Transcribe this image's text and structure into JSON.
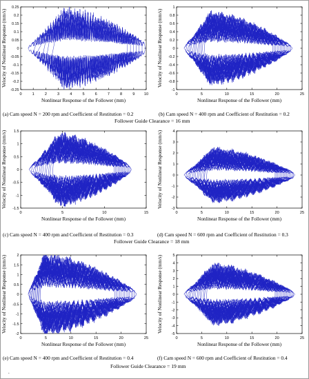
{
  "panels": [
    {
      "id": "a",
      "caption": "(a) Cam speed N = 200 rpm and Coefficient of Restitution = 0.2",
      "chart_data": {
        "type": "line",
        "title": "",
        "xlabel": "Nonlinear Response of the Follower (mm)",
        "ylabel": "Velocity of Nonlinear Response (mm/s)",
        "xlim": [
          0,
          10
        ],
        "ylim": [
          -0.25,
          0.25
        ],
        "xticks": [
          "0",
          "1",
          "2",
          "3",
          "4",
          "5",
          "6",
          "7",
          "8",
          "9",
          "10"
        ],
        "yticks": [
          "-0.25",
          "-0.2",
          "-0.15",
          "-0.1",
          "-0.05",
          "0",
          "0.05",
          "0.1",
          "0.15",
          "0.2",
          "0.25"
        ],
        "grid": false,
        "color": "#1f24c4",
        "envelope": {
          "x0": 0.6,
          "x1": 9.9,
          "x_peak": 3.4,
          "amp_peak": 0.225,
          "amp_end": 0.03,
          "loops": 7,
          "oscillations": 44
        }
      }
    },
    {
      "id": "b",
      "caption": "(b) Cam speed N = 400 rpm and Coefficient of Restitution = 0.2",
      "chart_data": {
        "type": "line",
        "title": "",
        "xlabel": "Nonlinear Response of the Follower (mm)",
        "ylabel": "Velocity of Nonlinear Response (mm/s)",
        "xlim": [
          0,
          25
        ],
        "ylim": [
          -1,
          1
        ],
        "xticks": [
          "0",
          "5",
          "10",
          "15",
          "20",
          "25"
        ],
        "yticks": [
          "-1",
          "-0.8",
          "-0.6",
          "-0.4",
          "-0.2",
          "0",
          "0.2",
          "0.4",
          "0.6",
          "0.8",
          "1"
        ],
        "grid": false,
        "color": "#1f24c4",
        "envelope": {
          "x0": 1.5,
          "x1": 23,
          "x_peak": 6.5,
          "amp_peak": 0.82,
          "amp_end": 0.05,
          "loops": 14,
          "oscillations": 10
        }
      }
    },
    {
      "id": "c",
      "caption": "(c) Cam speed N = 400 rpm and Coefficient of Restitution = 0.3",
      "chart_data": {
        "type": "line",
        "title": "",
        "xlabel": "Nonlinear Response of the Follower (mm)",
        "ylabel": "Velocity of Nonlinear Response (mm/s)",
        "xlim": [
          0,
          15
        ],
        "ylim": [
          -1.5,
          1.5
        ],
        "xticks": [
          "0",
          "5",
          "10",
          "15"
        ],
        "yticks": [
          "-1.5",
          "-1",
          "-0.5",
          "0",
          "0.5",
          "1",
          "1.5"
        ],
        "grid": false,
        "color": "#1f24c4",
        "envelope": {
          "x0": 1.0,
          "x1": 13.2,
          "x_peak": 4.5,
          "amp_peak": 1.3,
          "amp_end": 0.1,
          "loops": 14,
          "oscillations": 10
        }
      }
    },
    {
      "id": "d",
      "caption": "(d) Cam speed N = 600 rpm and Coefficient of Restitution = 0.3",
      "chart_data": {
        "type": "line",
        "title": "",
        "xlabel": "Nonlinear Response of the Follower (mm)",
        "ylabel": "Velocity of Nonlinear Response (mm/s)",
        "xlim": [
          0,
          25
        ],
        "ylim": [
          -3,
          4
        ],
        "xticks": [
          "0",
          "5",
          "10",
          "15",
          "20",
          "25"
        ],
        "yticks": [
          "-3",
          "-2",
          "-1",
          "0",
          "1",
          "2",
          "3",
          "4"
        ],
        "grid": false,
        "color": "#1f24c4",
        "envelope": {
          "x0": 1.5,
          "x1": 23.5,
          "x_peak": 7,
          "amp_peak": 2.3,
          "amp_end": 0.2,
          "loops": 16,
          "oscillations": 8
        }
      }
    },
    {
      "id": "e",
      "caption": "(e) Cam speed N = 400 rpm and Coefficient of Restitution = 0.4",
      "chart_data": {
        "type": "line",
        "title": "",
        "xlabel": "Nonlinear Response of the Follower (mm)",
        "ylabel": "Velocity of Nonlinear Response (mm/s)",
        "xlim": [
          0,
          25
        ],
        "ylim": [
          -2,
          2
        ],
        "xticks": [
          "0",
          "5",
          "10",
          "15",
          "20",
          "25"
        ],
        "yticks": [
          "-2",
          "-1.5",
          "-1",
          "-0.5",
          "0",
          "0.5",
          "1",
          "1.5",
          "2"
        ],
        "grid": false,
        "color": "#1f24c4",
        "envelope": {
          "x0": 1.5,
          "x1": 23,
          "x_peak": 4.5,
          "amp_peak": 1.9,
          "amp_end": 0.15,
          "loops": 14,
          "oscillations": 9
        }
      }
    },
    {
      "id": "f",
      "caption": "(f) Cam speed N = 600 rpm and Coefficient of Restitution = 0.4",
      "chart_data": {
        "type": "line",
        "title": "",
        "xlabel": "Nonlinear Response of the Follower (mm)",
        "ylabel": "Velocity of Nonlinear Response (mm/s)",
        "xlim": [
          0,
          25
        ],
        "ylim": [
          -5,
          5
        ],
        "xticks": [
          "0",
          "5",
          "10",
          "15",
          "20",
          "25"
        ],
        "yticks": [
          "-5",
          "-4",
          "-3",
          "-2",
          "-1",
          "0",
          "1",
          "2",
          "3",
          "4",
          "5"
        ],
        "grid": false,
        "color": "#1f24c4",
        "envelope": {
          "x0": 1.5,
          "x1": 23.5,
          "x_peak": 7,
          "amp_peak": 3.6,
          "amp_end": 0.25,
          "loops": 16,
          "oscillations": 8
        }
      }
    }
  ],
  "group_labels": [
    "Follower Guide Clearance = 16 mm",
    "Follower  Guide Clearance = 18 mm",
    "Follower Guide Clearance = 19 mm"
  ],
  "footer_mark": "."
}
